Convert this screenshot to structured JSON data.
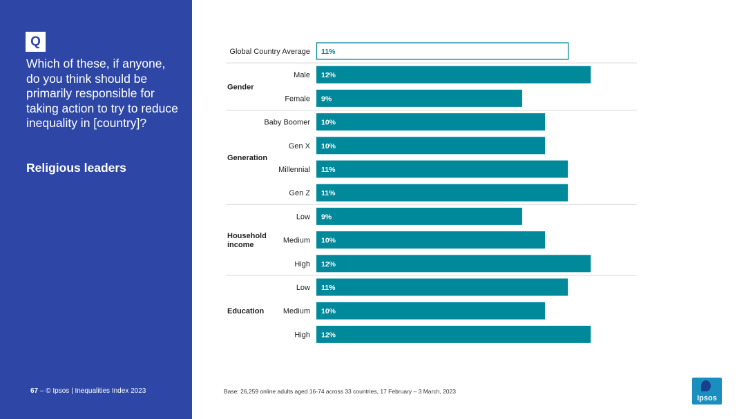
{
  "question": {
    "badge": "Q",
    "text": "Which of these, if anyone, do you think should be primarily responsible for taking action to try to reduce inequality in [country]?",
    "subject": "Religious leaders"
  },
  "footer": {
    "page": "67",
    "separator": "–",
    "source": "© Ipsos | Inequalities Index 2023",
    "base": "Base: 26,259 online adults aged 16-74 across 33 countries, 17 February – 3 March, 2023"
  },
  "logo": {
    "text": "Ipsos"
  },
  "colors": {
    "panel": "#2e47a6",
    "bar": "#00899a",
    "highlight_outline": "#00899a",
    "highlight_text": "#00899a"
  },
  "chart_data": {
    "type": "bar",
    "orientation": "horizontal",
    "title": "Religious leaders",
    "value_unit": "%",
    "xlim": [
      0,
      14.5
    ],
    "rows": [
      {
        "group": "",
        "label": "Global Country Average",
        "value": 11,
        "display": "11%",
        "highlight": true
      },
      {
        "group": "Gender",
        "label": "Male",
        "value": 12,
        "display": "12%"
      },
      {
        "group": "Gender",
        "label": "Female",
        "value": 9,
        "display": "9%"
      },
      {
        "group": "Generation",
        "label": "Baby Boomer",
        "value": 10,
        "display": "10%"
      },
      {
        "group": "Generation",
        "label": "Gen X",
        "value": 10,
        "display": "10%"
      },
      {
        "group": "Generation",
        "label": "Millennial",
        "value": 11,
        "display": "11%"
      },
      {
        "group": "Generation",
        "label": "Gen Z",
        "value": 11,
        "display": "11%"
      },
      {
        "group": "Household income",
        "label": "Low",
        "value": 9,
        "display": "9%"
      },
      {
        "group": "Household income",
        "label": "Medium",
        "value": 10,
        "display": "10%"
      },
      {
        "group": "Household income",
        "label": "High",
        "value": 12,
        "display": "12%"
      },
      {
        "group": "Education",
        "label": "Low",
        "value": 11,
        "display": "11%"
      },
      {
        "group": "Education",
        "label": "Medium",
        "value": 10,
        "display": "10%"
      },
      {
        "group": "Education",
        "label": "High",
        "value": 12,
        "display": "12%"
      }
    ],
    "groups": [
      {
        "name": "Gender",
        "lines": [
          "Gender"
        ]
      },
      {
        "name": "Generation",
        "lines": [
          "Generation"
        ]
      },
      {
        "name": "Household income",
        "lines": [
          "Household",
          "income"
        ]
      },
      {
        "name": "Education",
        "lines": [
          "Education"
        ]
      }
    ]
  }
}
